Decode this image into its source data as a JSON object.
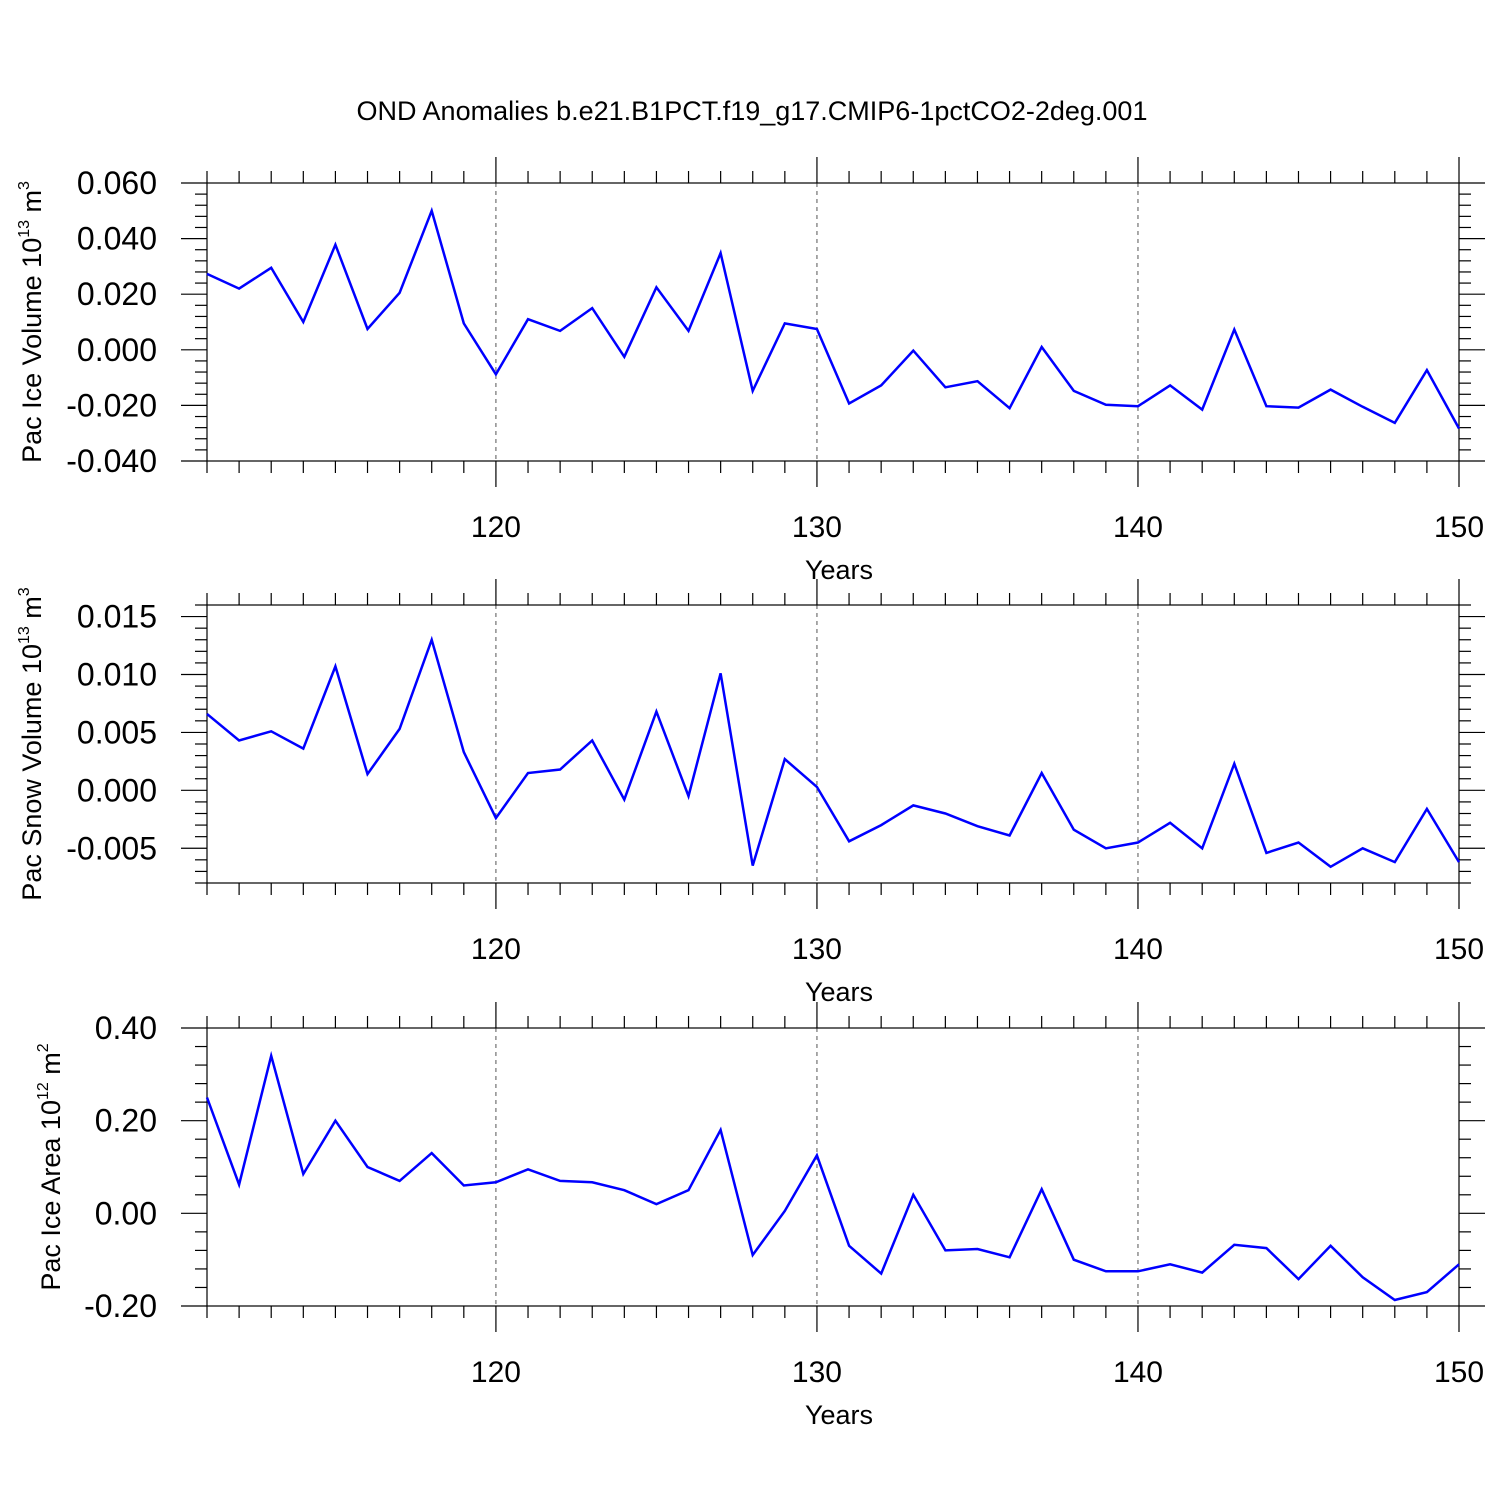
{
  "title": "OND Anomalies b.e21.B1PCT.f19_g17.CMIP6-1pctCO2-2deg.001",
  "colors": {
    "line": "#0000ff",
    "axis": "#000000",
    "grid": "#555555"
  },
  "chart_data": [
    {
      "type": "line",
      "ylabel": {
        "main": "Pac Ice Volume 10",
        "sup": "13",
        "unit": " m",
        "unit_sup": "3"
      },
      "xlabel": "Years",
      "xlim": [
        111,
        150
      ],
      "ylim": [
        -0.04,
        0.06
      ],
      "xticks": [
        120,
        130,
        140,
        150
      ],
      "xtick_labels": [
        "120",
        "130",
        "140",
        "150"
      ],
      "yticks": [
        -0.04,
        -0.02,
        0.0,
        0.02,
        0.04,
        0.06
      ],
      "ytick_labels": [
        "-0.040",
        "-0.020",
        "0.000",
        "0.020",
        "0.040",
        "0.060"
      ],
      "grid": "vertical dashed at major x ticks",
      "series": [
        {
          "x": [
            111,
            112,
            113,
            114,
            115,
            116,
            117,
            118,
            119,
            120,
            121,
            122,
            123,
            124,
            125,
            126,
            127,
            128,
            129,
            130,
            131,
            132,
            133,
            134,
            135,
            136,
            137,
            138,
            139,
            140,
            141,
            142,
            143,
            144,
            145,
            146,
            147,
            148,
            149,
            150
          ],
          "values": [
            0.0273,
            0.022,
            0.0295,
            0.01,
            0.0378,
            0.0075,
            0.0205,
            0.05,
            0.0095,
            -0.0088,
            0.011,
            0.0068,
            0.015,
            -0.0025,
            0.0225,
            0.0068,
            0.0348,
            -0.0148,
            0.0095,
            0.0075,
            -0.0193,
            -0.0128,
            -0.0003,
            -0.0135,
            -0.0113,
            -0.021,
            0.001,
            -0.0148,
            -0.0198,
            -0.0203,
            -0.0128,
            -0.0215,
            0.0073,
            -0.0203,
            -0.0208,
            -0.0143,
            -0.0205,
            -0.0263,
            -0.0073,
            -0.0283
          ]
        }
      ]
    },
    {
      "type": "line",
      "ylabel": {
        "main": "Pac Snow Volume 10",
        "sup": "13",
        "unit": " m",
        "unit_sup": "3"
      },
      "xlabel": "Years",
      "xlim": [
        111,
        150
      ],
      "ylim": [
        -0.008,
        0.016
      ],
      "xticks": [
        120,
        130,
        140,
        150
      ],
      "xtick_labels": [
        "120",
        "130",
        "140",
        "150"
      ],
      "yticks": [
        -0.005,
        0.0,
        0.005,
        0.01,
        0.015
      ],
      "ytick_labels": [
        "-0.005",
        "0.000",
        "0.005",
        "0.010",
        "0.015"
      ],
      "grid": "vertical dashed at major x ticks",
      "series": [
        {
          "x": [
            111,
            112,
            113,
            114,
            115,
            116,
            117,
            118,
            119,
            120,
            121,
            122,
            123,
            124,
            125,
            126,
            127,
            128,
            129,
            130,
            131,
            132,
            133,
            134,
            135,
            136,
            137,
            138,
            139,
            140,
            141,
            142,
            143,
            144,
            145,
            146,
            147,
            148,
            149,
            150
          ],
          "values": [
            0.0066,
            0.0043,
            0.0051,
            0.0036,
            0.0107,
            0.0014,
            0.0053,
            0.013,
            0.0033,
            -0.0024,
            0.0015,
            0.0018,
            0.0043,
            -0.0008,
            0.0068,
            -0.0005,
            0.0101,
            -0.0065,
            0.0027,
            0.0003,
            -0.0044,
            -0.003,
            -0.0013,
            -0.002,
            -0.0031,
            -0.0039,
            0.0015,
            -0.0034,
            -0.005,
            -0.0045,
            -0.0028,
            -0.005,
            0.0023,
            -0.0054,
            -0.0045,
            -0.0066,
            -0.005,
            -0.0062,
            -0.0016,
            -0.0062
          ]
        }
      ]
    },
    {
      "type": "line",
      "ylabel": {
        "main": "Pac Ice Area 10",
        "sup": "12",
        "unit": " m",
        "unit_sup": "2"
      },
      "xlabel": "Years",
      "xlim": [
        111,
        150
      ],
      "ylim": [
        -0.2,
        0.4
      ],
      "xticks": [
        120,
        130,
        140,
        150
      ],
      "xtick_labels": [
        "120",
        "130",
        "140",
        "150"
      ],
      "yticks": [
        -0.2,
        0.0,
        0.2,
        0.4
      ],
      "ytick_labels": [
        "-0.20",
        "0.00",
        "0.20",
        "0.40"
      ],
      "grid": "vertical dashed at major x ticks",
      "series": [
        {
          "x": [
            111,
            112,
            113,
            114,
            115,
            116,
            117,
            118,
            119,
            120,
            121,
            122,
            123,
            124,
            125,
            126,
            127,
            128,
            129,
            130,
            131,
            132,
            133,
            134,
            135,
            136,
            137,
            138,
            139,
            140,
            141,
            142,
            143,
            144,
            145,
            146,
            147,
            148,
            149,
            150
          ],
          "values": [
            0.25,
            0.062,
            0.34,
            0.085,
            0.2,
            0.1,
            0.07,
            0.13,
            0.06,
            0.067,
            0.095,
            0.07,
            0.067,
            0.05,
            0.02,
            0.05,
            0.18,
            -0.09,
            0.005,
            0.125,
            -0.07,
            -0.13,
            0.04,
            -0.08,
            -0.077,
            -0.095,
            0.052,
            -0.1,
            -0.125,
            -0.125,
            -0.11,
            -0.128,
            -0.068,
            -0.075,
            -0.142,
            -0.07,
            -0.138,
            -0.187,
            -0.17,
            -0.11
          ]
        }
      ]
    }
  ]
}
